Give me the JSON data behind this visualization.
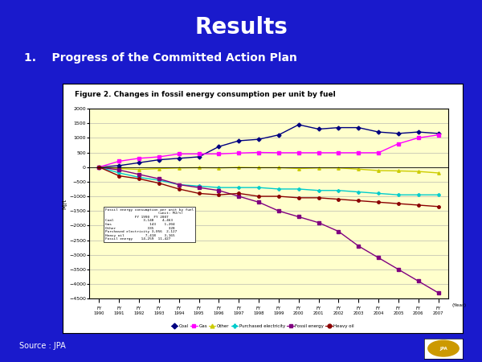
{
  "title_fig": "Figure 2. Changes in fossil energy consumption per unit by fuel",
  "title_main": "Results",
  "subtitle": "1.    Progress of the Committed Action Plan",
  "ylabel": "MJ/t",
  "xlabel_year": "(Year)",
  "source": "Source : JPA",
  "background_slide": "#1a1acc",
  "background_chart": "#ffffcc",
  "background_outer": "#ffffff",
  "years_n": 18,
  "coal": [
    0,
    50,
    150,
    250,
    300,
    350,
    700,
    900,
    950,
    1100,
    1450,
    1300,
    1350,
    1350,
    1200,
    1150,
    1200,
    1150
  ],
  "gas": [
    0,
    200,
    300,
    350,
    450,
    450,
    450,
    480,
    500,
    490,
    490,
    490,
    490,
    490,
    490,
    800,
    1000,
    1100
  ],
  "other": [
    0,
    -50,
    -80,
    -50,
    -30,
    -20,
    -30,
    -10,
    -20,
    -20,
    -50,
    -30,
    -30,
    -70,
    -120,
    -130,
    -150,
    -200
  ],
  "purchased_electricity": [
    0,
    -200,
    -350,
    -450,
    -600,
    -650,
    -700,
    -700,
    -700,
    -750,
    -750,
    -800,
    -800,
    -850,
    -900,
    -950,
    -950,
    -950
  ],
  "fossil_energy": [
    0,
    -100,
    -250,
    -400,
    -600,
    -700,
    -800,
    -1000,
    -1200,
    -1500,
    -1700,
    -1900,
    -2200,
    -2700,
    -3100,
    -3500,
    -3900,
    -4300
  ],
  "heavy_oil": [
    0,
    -300,
    -400,
    -550,
    -750,
    -900,
    -950,
    -900,
    -1000,
    -1000,
    -1050,
    -1050,
    -1100,
    -1150,
    -1200,
    -1250,
    -1300,
    -1350
  ],
  "coal_color": "#000080",
  "gas_color": "#ff00ff",
  "other_color": "#cccc00",
  "purchased_electricity_color": "#00cccc",
  "fossil_energy_color": "#800080",
  "heavy_oil_color": "#8b0000",
  "ylim": [
    -4500,
    2000
  ],
  "yticks": [
    -4500,
    -4000,
    -3500,
    -3000,
    -2500,
    -2000,
    -1500,
    -1000,
    -500,
    0,
    500,
    1000,
    1500,
    2000
  ],
  "legend_entries": [
    "Coal",
    "Gas",
    "Other",
    "Purchased electricity",
    "Fossil energy",
    "Heavy oil"
  ],
  "legend_colors": [
    "#000080",
    "#ff00ff",
    "#cccc00",
    "#00cccc",
    "#800080",
    "#8b0000"
  ],
  "legend_markers": [
    "D",
    "s",
    "^",
    "P",
    "s",
    "o"
  ]
}
